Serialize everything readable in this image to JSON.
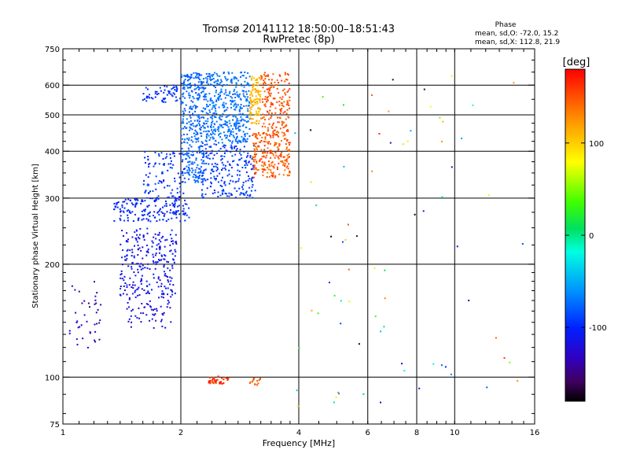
{
  "chart_data": {
    "type": "scatter",
    "title": "Tromsø 20141112 18:50:00–18:51:43",
    "subtitle": "RwPretec (8p)",
    "xlabel": "Frequency [MHz]",
    "ylabel": "Stationary phase Virtual Height [km]",
    "x_scale": "log2",
    "y_scale": "log",
    "xlim": [
      1,
      16
    ],
    "ylim": [
      75,
      750
    ],
    "x_ticks": [
      "1",
      "2",
      "4",
      "6",
      "8",
      "10",
      "16"
    ],
    "y_ticks": [
      "75",
      "100",
      "200",
      "300",
      "400",
      "500",
      "600",
      "750"
    ],
    "grid": true,
    "phase_box": {
      "title": "Phase",
      "line1": "mean, sd,O: -72.0, 15.2",
      "line2": "mean, sd,X: 112.8, 21.9"
    },
    "colorbar": {
      "label": "[deg]",
      "range": [
        -180,
        180
      ],
      "ticks": [
        "100",
        "0",
        "-100"
      ]
    },
    "clusters": [
      {
        "x": [
          1.04,
          1.25
        ],
        "y": [
          115,
          180
        ],
        "phase": [
          -150,
          -120
        ],
        "n": 40,
        "note": "sparse low-frequency echoes"
      },
      {
        "x": [
          1.4,
          1.95
        ],
        "y": [
          165,
          250
        ],
        "phase": [
          -130,
          -95
        ],
        "n": 240,
        "note": "E/F1 trace"
      },
      {
        "x": [
          1.45,
          1.9
        ],
        "y": [
          135,
          165
        ],
        "phase": [
          -135,
          -105
        ],
        "n": 60
      },
      {
        "x": [
          1.35,
          2.1
        ],
        "y": [
          260,
          300
        ],
        "phase": [
          -110,
          -90
        ],
        "n": 170,
        "note": "horizontal band ~280 km"
      },
      {
        "x": [
          1.6,
          2.05
        ],
        "y": [
          300,
          400
        ],
        "phase": [
          -110,
          -80
        ],
        "n": 100
      },
      {
        "x": [
          1.6,
          2.0
        ],
        "y": [
          540,
          600
        ],
        "phase": [
          -105,
          -85
        ],
        "n": 60
      },
      {
        "x": [
          2.0,
          2.3
        ],
        "y": [
          330,
          650
        ],
        "phase": [
          -85,
          -70
        ],
        "n": 330,
        "note": "O-mode vertical column"
      },
      {
        "x": [
          2.3,
          3.0
        ],
        "y": [
          420,
          650
        ],
        "phase": [
          -80,
          -65
        ],
        "n": 420
      },
      {
        "x": [
          2.25,
          3.1
        ],
        "y": [
          300,
          420
        ],
        "phase": [
          -100,
          -85
        ],
        "n": 230,
        "note": "diagonal band"
      },
      {
        "x": [
          3.0,
          3.2
        ],
        "y": [
          470,
          640
        ],
        "phase": [
          100,
          120
        ],
        "n": 110,
        "note": "X-mode yellow"
      },
      {
        "x": [
          3.05,
          3.8
        ],
        "y": [
          340,
          450
        ],
        "phase": [
          130,
          165
        ],
        "n": 230,
        "note": "X-mode orange"
      },
      {
        "x": [
          3.2,
          3.8
        ],
        "y": [
          450,
          650
        ],
        "phase": [
          140,
          160
        ],
        "n": 170
      },
      {
        "x": [
          2.35,
          2.65
        ],
        "y": [
          96,
          101
        ],
        "phase": [
          150,
          175
        ],
        "n": 40,
        "note": "E-region echoes ~100 km"
      },
      {
        "x": [
          3.0,
          3.2
        ],
        "y": [
          95,
          100
        ],
        "phase": [
          140,
          155
        ],
        "n": 15
      },
      {
        "x": [
          3.9,
          15
        ],
        "y": [
          80,
          650
        ],
        "phase": [
          -180,
          180
        ],
        "n": 75,
        "note": "scattered noise"
      }
    ]
  }
}
